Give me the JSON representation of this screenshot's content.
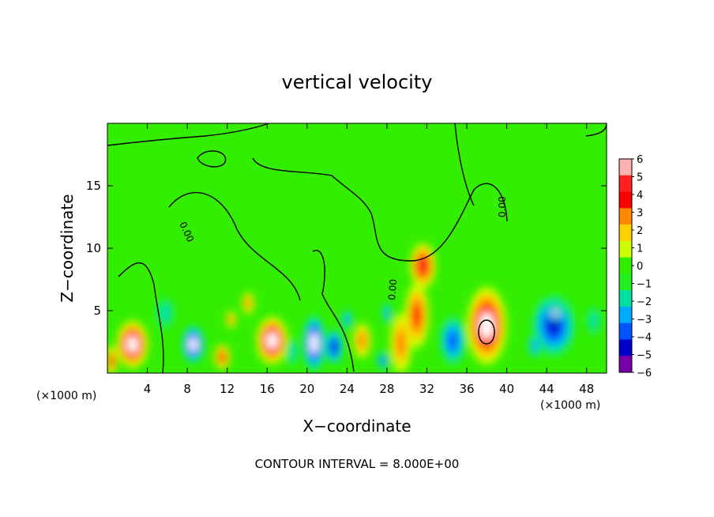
{
  "chart_data": {
    "type": "heatmap",
    "title": "vertical velocity",
    "xlabel": "X−coordinate",
    "ylabel": "Z−coordinate",
    "x_unit_left": "(×1000 m)",
    "x_unit_right": "(×1000 m)",
    "footer": "CONTOUR INTERVAL = 8.000E+00",
    "contour_label": "0.00",
    "xlim": [
      0,
      50
    ],
    "ylim": [
      0,
      20
    ],
    "x_ticks": [
      4,
      8,
      12,
      16,
      20,
      24,
      28,
      32,
      36,
      40,
      44,
      48
    ],
    "y_ticks": [
      5,
      10,
      15
    ],
    "colorbar": {
      "ticks": [
        "6",
        "5",
        "4",
        "3",
        "2",
        "1",
        "0",
        "−1",
        "−2",
        "−3",
        "−4",
        "−5",
        "−6"
      ],
      "colors": [
        "#ffb0b0",
        "#ff2020",
        "#ff0000",
        "#ff8800",
        "#ffd000",
        "#ccff00",
        "#33ee00",
        "#22ee22",
        "#00e0a0",
        "#00aaff",
        "#0055ff",
        "#0000cc",
        "#7700aa"
      ],
      "min": -6,
      "max": 6
    },
    "cells": [
      {
        "x": 2.5,
        "z": 2.3,
        "rx": 1.6,
        "rz": 1.9,
        "v": 5.5
      },
      {
        "x": 0.4,
        "z": 1.0,
        "rx": 0.6,
        "rz": 1.2,
        "v": 4
      },
      {
        "x": 5.8,
        "z": 4.8,
        "rx": 1.0,
        "rz": 1.4,
        "v": -2
      },
      {
        "x": 8.6,
        "z": 2.3,
        "rx": 1.2,
        "rz": 1.6,
        "v": -5.5
      },
      {
        "x": 11.5,
        "z": 1.3,
        "rx": 0.8,
        "rz": 1.0,
        "v": 4
      },
      {
        "x": 12.4,
        "z": 4.3,
        "rx": 0.5,
        "rz": 0.7,
        "v": 3
      },
      {
        "x": 14.1,
        "z": 5.6,
        "rx": 0.6,
        "rz": 0.9,
        "v": 3
      },
      {
        "x": 16.5,
        "z": 2.6,
        "rx": 1.6,
        "rz": 1.9,
        "v": 5.5
      },
      {
        "x": 18.5,
        "z": 1.7,
        "rx": 0.7,
        "rz": 1.3,
        "v": -2
      },
      {
        "x": 20.7,
        "z": 2.4,
        "rx": 1.2,
        "rz": 2.4,
        "v": -5.5
      },
      {
        "x": 22.7,
        "z": 2.1,
        "rx": 1.0,
        "rz": 1.5,
        "v": -4.5
      },
      {
        "x": 24.0,
        "z": 4.3,
        "rx": 0.6,
        "rz": 0.9,
        "v": -3
      },
      {
        "x": 25.5,
        "z": 2.6,
        "rx": 0.9,
        "rz": 1.4,
        "v": 3
      },
      {
        "x": 27.6,
        "z": 1.0,
        "rx": 0.6,
        "rz": 0.8,
        "v": -4
      },
      {
        "x": 28.0,
        "z": 4.8,
        "rx": 0.5,
        "rz": 1.0,
        "v": -3
      },
      {
        "x": 29.4,
        "z": 2.4,
        "rx": 1.1,
        "rz": 2.4,
        "v": 3
      },
      {
        "x": 31.6,
        "z": 8.6,
        "rx": 1.3,
        "rz": 1.8,
        "v": 5
      },
      {
        "x": 31.0,
        "z": 4.6,
        "rx": 1.2,
        "rz": 2.6,
        "v": 4
      },
      {
        "x": 34.6,
        "z": 2.6,
        "rx": 1.4,
        "rz": 2.1,
        "v": -4
      },
      {
        "x": 38.0,
        "z": 3.8,
        "rx": 2.0,
        "rz": 3.1,
        "v": 6
      },
      {
        "x": 44.7,
        "z": 3.8,
        "rx": 2.3,
        "rz": 2.6,
        "v": -4.5
      },
      {
        "x": 44.9,
        "z": 4.8,
        "rx": 0.7,
        "rz": 0.6,
        "v": -6
      },
      {
        "x": 48.7,
        "z": 4.2,
        "rx": 0.8,
        "rz": 1.3,
        "v": -2
      },
      {
        "x": 42.8,
        "z": 2.2,
        "rx": 0.7,
        "rz": 1.1,
        "v": -3
      }
    ]
  }
}
